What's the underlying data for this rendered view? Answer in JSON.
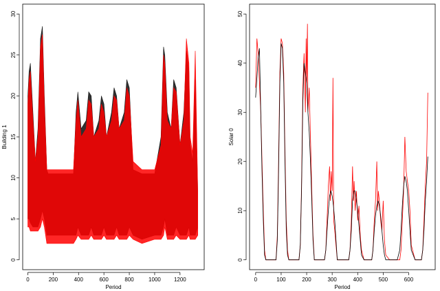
{
  "chart_data": [
    {
      "type": "line",
      "title": "",
      "xlabel": "Period",
      "ylabel": "Building 1",
      "xlim": [
        0,
        1350
      ],
      "ylim": [
        0,
        30
      ],
      "xticks": [
        0,
        200,
        400,
        600,
        800,
        1000,
        1200
      ],
      "yticks": [
        0,
        5,
        10,
        15,
        20,
        25,
        30
      ],
      "grid": false,
      "legend": "none",
      "colors": {
        "actual": "#1a1a1a",
        "forecast": "#ff0000"
      },
      "series": [
        {
          "color": "#1a1a1a",
          "envelope": {
            "x": [
              0,
              10,
              20,
              40,
              60,
              80,
              100,
              115,
              130,
              150,
              160,
              200,
              250,
              300,
              360,
              380,
              395,
              420,
              460,
              480,
              500,
              520,
              560,
              580,
              600,
              620,
              660,
              680,
              700,
              720,
              760,
              780,
              800,
              830,
              900,
              1000,
              1050,
              1070,
              1080,
              1100,
              1130,
              1150,
              1170,
              1200,
              1230,
              1250,
              1270,
              1280,
              1300,
              1320,
              1340
            ],
            "high": [
              20,
              23,
              24,
              18,
              12,
              16,
              27,
              28.5,
              20,
              11,
              10.5,
              10.5,
              10.5,
              10.5,
              10.5,
              18,
              20.5,
              16,
              17,
              20.5,
              20,
              15,
              17,
              20,
              19,
              15,
              18,
              21,
              20,
              16,
              18,
              22,
              21,
              11,
              10.5,
              10.5,
              15,
              26,
              25,
              18,
              16,
              22,
              21,
              14,
              18,
              25.5,
              23,
              14,
              12,
              22,
              8
            ],
            "low": [
              5,
              5,
              4.5,
              4,
              4,
              4,
              5,
              6,
              5,
              3,
              3,
              3,
              3,
              3,
              3,
              3,
              4,
              3,
              3,
              3,
              4,
              3,
              3,
              3,
              4,
              3,
              3,
              3,
              4,
              3,
              3,
              3,
              4,
              3,
              2.5,
              3,
              3,
              4,
              5,
              3,
              3,
              3,
              4,
              3,
              3,
              3,
              4,
              3,
              3,
              3,
              4
            ]
          }
        },
        {
          "color": "#ff0000",
          "envelope": {
            "x": [
              0,
              10,
              20,
              40,
              60,
              80,
              100,
              115,
              130,
              150,
              160,
              200,
              250,
              300,
              360,
              380,
              395,
              420,
              460,
              480,
              500,
              520,
              560,
              580,
              600,
              620,
              660,
              680,
              700,
              720,
              760,
              780,
              800,
              830,
              900,
              1000,
              1050,
              1070,
              1080,
              1100,
              1130,
              1150,
              1170,
              1200,
              1230,
              1250,
              1270,
              1280,
              1300,
              1320,
              1340
            ],
            "high": [
              19,
              22,
              23,
              17,
              12,
              15,
              26,
              27.5,
              19,
              11,
              11,
              11,
              11,
              11,
              11,
              17,
              19.5,
              15,
              16,
              19.5,
              19,
              15,
              16,
              19,
              18,
              15,
              17,
              20,
              19.5,
              16,
              17,
              21,
              20,
              12,
              11,
              11,
              14,
              25,
              24,
              17,
              16,
              21,
              20.5,
              14,
              17,
              27,
              24,
              15,
              13,
              25.5,
              8
            ],
            "low": [
              4,
              4,
              3.5,
              3.5,
              3.5,
              3.5,
              4,
              5,
              4,
              2,
              2,
              2,
              2,
              2,
              2,
              2.5,
              3,
              2.5,
              2.5,
              2.5,
              3,
              2.5,
              2.5,
              2.5,
              3,
              2.5,
              2.5,
              2.5,
              3,
              2.5,
              2.5,
              2.5,
              3,
              2.5,
              2,
              2.5,
              2.5,
              3,
              4,
              2.5,
              2.5,
              2.5,
              3,
              2.5,
              2.5,
              2.5,
              3,
              2.5,
              2.5,
              2.5,
              3
            ]
          }
        }
      ]
    },
    {
      "type": "line",
      "title": "",
      "xlabel": "Period",
      "ylabel": "Solar 0",
      "xlim": [
        0,
        680
      ],
      "ylim": [
        0,
        50
      ],
      "xticks": [
        0,
        100,
        200,
        300,
        400,
        500,
        600
      ],
      "yticks": [
        0,
        10,
        20,
        30,
        40,
        50
      ],
      "grid": false,
      "legend": "none",
      "colors": {
        "actual": "#000000",
        "forecast": "#ff0000"
      },
      "series": [
        {
          "color": "#ff0000",
          "x": [
            0,
            5,
            10,
            15,
            20,
            25,
            30,
            35,
            40,
            55,
            70,
            80,
            85,
            90,
            95,
            100,
            105,
            110,
            115,
            120,
            125,
            130,
            145,
            160,
            170,
            175,
            180,
            185,
            190,
            195,
            198,
            200,
            203,
            205,
            210,
            215,
            220,
            225,
            230,
            245,
            260,
            270,
            275,
            280,
            285,
            290,
            293,
            296,
            300,
            303,
            306,
            310,
            315,
            320,
            335,
            355,
            365,
            370,
            375,
            380,
            383,
            386,
            390,
            395,
            400,
            405,
            410,
            415,
            425,
            445,
            455,
            460,
            465,
            470,
            475,
            478,
            481,
            485,
            490,
            495,
            500,
            505,
            510,
            525,
            545,
            555,
            565,
            570,
            575,
            580,
            585,
            590,
            595,
            600,
            605,
            610,
            625,
            640,
            650,
            655,
            660,
            665,
            670,
            675
          ],
          "y": [
            35,
            45,
            42,
            36,
            30,
            20,
            10,
            2,
            0,
            0,
            0,
            0,
            5,
            20,
            38,
            45,
            44,
            38,
            22,
            8,
            2,
            0,
            0,
            0,
            0,
            3,
            15,
            35,
            42,
            30,
            45,
            36,
            48,
            30,
            35,
            25,
            14,
            5,
            0,
            0,
            0,
            0,
            2,
            8,
            15,
            19,
            12,
            18,
            14,
            37,
            8,
            6,
            3,
            0,
            0,
            0,
            0,
            2,
            8,
            19,
            12,
            16,
            10,
            14,
            8,
            11,
            5,
            2,
            0,
            0,
            0,
            2,
            8,
            12,
            20,
            10,
            14,
            12,
            8,
            6,
            12,
            4,
            1,
            0,
            0,
            0,
            0,
            2,
            8,
            14,
            25,
            18,
            16,
            14,
            10,
            3,
            0,
            0,
            0,
            2,
            8,
            15,
            20,
            34
          ]
        },
        {
          "color": "#000000",
          "x": [
            0,
            5,
            10,
            15,
            20,
            25,
            30,
            35,
            40,
            55,
            70,
            80,
            85,
            90,
            95,
            100,
            105,
            110,
            115,
            120,
            125,
            130,
            145,
            160,
            170,
            175,
            180,
            185,
            190,
            195,
            200,
            205,
            210,
            215,
            220,
            225,
            230,
            245,
            260,
            270,
            275,
            280,
            285,
            290,
            295,
            300,
            305,
            310,
            315,
            320,
            335,
            355,
            365,
            370,
            375,
            380,
            385,
            390,
            395,
            400,
            405,
            410,
            415,
            425,
            445,
            455,
            460,
            465,
            470,
            475,
            480,
            485,
            490,
            495,
            500,
            505,
            510,
            525,
            545,
            555,
            565,
            570,
            575,
            580,
            585,
            590,
            595,
            600,
            605,
            610,
            625,
            640,
            650,
            655,
            660,
            665,
            670,
            675
          ],
          "y": [
            33,
            37,
            41,
            43,
            30,
            18,
            8,
            1,
            0,
            0,
            0,
            0,
            4,
            18,
            36,
            44,
            43,
            36,
            20,
            6,
            1,
            0,
            0,
            0,
            0,
            3,
            14,
            32,
            40,
            38,
            36,
            30,
            26,
            20,
            12,
            4,
            0,
            0,
            0,
            0,
            2,
            6,
            10,
            13,
            14,
            13,
            11,
            8,
            4,
            0,
            0,
            0,
            0,
            2,
            6,
            12,
            14,
            14,
            12,
            10,
            7,
            4,
            1,
            0,
            0,
            0,
            2,
            6,
            9,
            11,
            12,
            11,
            9,
            6,
            3,
            1,
            0,
            0,
            0,
            0,
            2,
            6,
            11,
            15,
            17,
            16,
            14,
            10,
            6,
            2,
            0,
            0,
            0,
            2,
            6,
            12,
            16,
            21
          ]
        }
      ]
    }
  ]
}
